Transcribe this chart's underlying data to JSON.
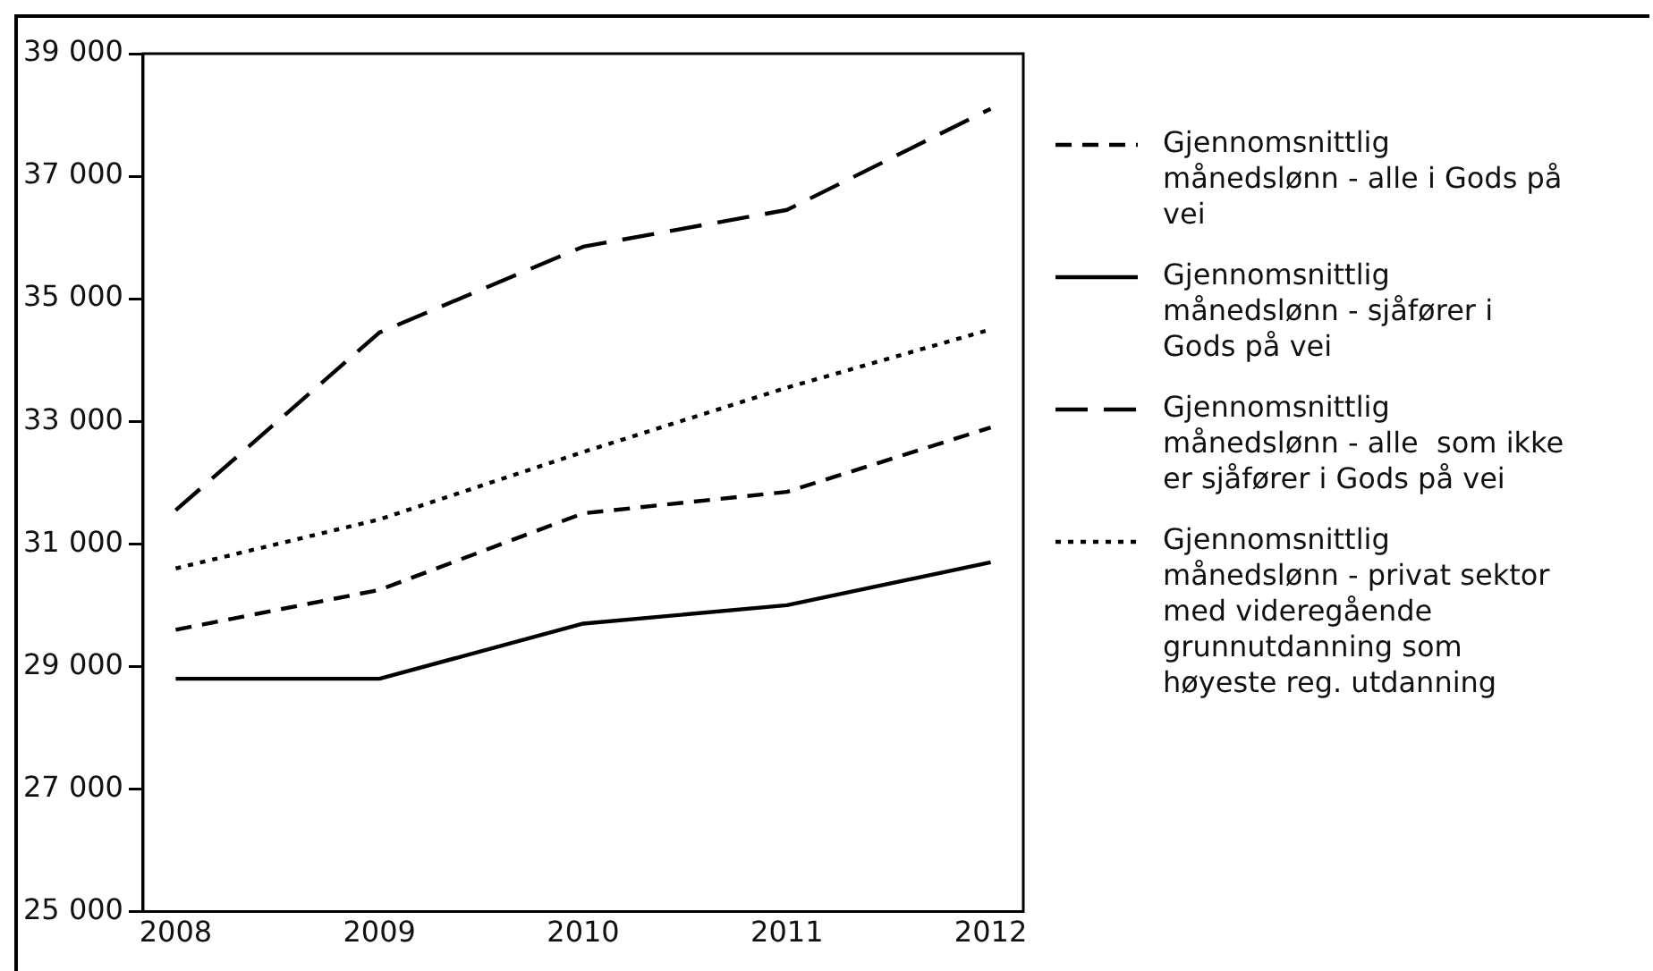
{
  "chart_data": {
    "type": "line",
    "x": [
      2008,
      2009,
      2010,
      2011,
      2012
    ],
    "xlim": [
      2007.84,
      2012.16
    ],
    "xticks": [
      2008,
      2009,
      2010,
      2011,
      2012
    ],
    "ylim": [
      25000,
      39000
    ],
    "yticks": [
      {
        "value": 25000,
        "label": "25 000"
      },
      {
        "value": 27000,
        "label": "27 000"
      },
      {
        "value": 29000,
        "label": "29 000"
      },
      {
        "value": 31000,
        "label": "31 000"
      },
      {
        "value": 33000,
        "label": "33 000"
      },
      {
        "value": 35000,
        "label": "35 000"
      },
      {
        "value": 37000,
        "label": "37 000"
      },
      {
        "value": 39000,
        "label": "39 000"
      }
    ],
    "grid": false,
    "legend": "right",
    "marker": "none",
    "series": [
      {
        "name": "Gjennomsnittlig månedslønn - alle i Gods på vei",
        "color": "#000000",
        "line_style": "dashed",
        "values": [
          29600,
          30250,
          31500,
          31850,
          32900
        ]
      },
      {
        "name": "Gjennomsnittlig månedslønn - sjåfører i Gods på vei",
        "color": "#000000",
        "line_style": "solid",
        "values": [
          28800,
          28800,
          29700,
          30000,
          30700
        ]
      },
      {
        "name": "Gjennomsnittlig månedslønn - alle  som ikke er sjåfører i Gods på vei",
        "color": "#000000",
        "line_style": "dashed",
        "values": [
          31550,
          34450,
          35850,
          36450,
          38100
        ]
      },
      {
        "name": "Gjennomsnittlig månedslønn - privat sektor med videregående grunnutdanning som høyeste reg. utdanning",
        "color": "#000000",
        "line_style": "dotted",
        "values": [
          30600,
          31400,
          32500,
          33550,
          34500
        ]
      }
    ]
  }
}
